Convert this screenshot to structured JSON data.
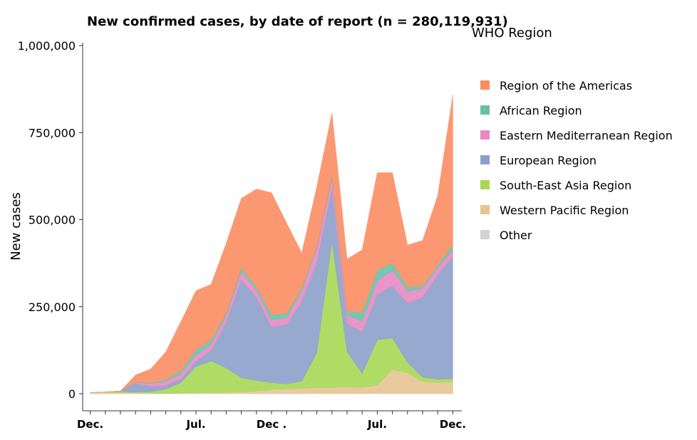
{
  "chart_data": {
    "type": "area",
    "stacked": true,
    "title": "New confirmed cases, by date of report (n = 280,119,931)",
    "xlabel": "",
    "ylabel": "New cases",
    "ylim": [
      0,
      1000000
    ],
    "yticks": [
      0,
      250000,
      500000,
      750000,
      1000000
    ],
    "ytick_labels": [
      "0",
      "250,000",
      "500,000",
      "750,000",
      "1,000,000"
    ],
    "xtick_labels": [
      "Dec.",
      "Jul.",
      "Dec .",
      "Jul.",
      "Dec."
    ],
    "xtick_positions_month_index": [
      0,
      7,
      12,
      19,
      24
    ],
    "x_month_range": [
      -0.5,
      24.5
    ],
    "legend": {
      "title": "WHO Region",
      "position": "right",
      "entries": [
        {
          "name": "Region of the Americas",
          "color": "#fc8d62"
        },
        {
          "name": "African Region",
          "color": "#66c2a5"
        },
        {
          "name": "Eastern Mediterranean Region",
          "color": "#e78ac3"
        },
        {
          "name": "European Region",
          "color": "#8da0cb"
        },
        {
          "name": "South-East Asia Region",
          "color": "#a6d854"
        },
        {
          "name": "Western Pacific Region",
          "color": "#e5c494"
        },
        {
          "name": "Other",
          "color": "#d3d3d3"
        }
      ]
    },
    "stack_order_bottom_to_top": [
      "Western Pacific Region",
      "South-East Asia Region",
      "European Region",
      "Eastern Mediterranean Region",
      "African Region",
      "Region of the Americas"
    ],
    "x_month_index": [
      0,
      1,
      2,
      3,
      4,
      5,
      6,
      7,
      8,
      9,
      10,
      11,
      12,
      13,
      14,
      15,
      16,
      17,
      18,
      19,
      20,
      21,
      22,
      23,
      24
    ],
    "series": [
      {
        "name": "Western Pacific Region",
        "values": [
          3000,
          5000,
          2000,
          2000,
          1000,
          1000,
          2000,
          3000,
          4000,
          4000,
          6000,
          8000,
          12000,
          14000,
          16000,
          18000,
          18000,
          20000,
          18000,
          25000,
          70000,
          60000,
          35000,
          32000,
          35000
        ]
      },
      {
        "name": "South-East Asia Region",
        "values": [
          0,
          0,
          5000,
          3000,
          5000,
          12000,
          30000,
          75000,
          90000,
          70000,
          40000,
          30000,
          20000,
          14000,
          20000,
          100000,
          420000,
          100000,
          40000,
          130000,
          90000,
          30000,
          12000,
          10000,
          8000
        ]
      },
      {
        "name": "European Region",
        "values": [
          0,
          0,
          1000,
          25000,
          15000,
          10000,
          10000,
          15000,
          30000,
          130000,
          280000,
          240000,
          160000,
          170000,
          230000,
          260000,
          150000,
          80000,
          120000,
          130000,
          150000,
          170000,
          230000,
          300000,
          350000
        ]
      },
      {
        "name": "Eastern Mediterranean Region",
        "values": [
          0,
          0,
          0,
          3000,
          8000,
          12000,
          15000,
          18000,
          18000,
          20000,
          25000,
          20000,
          20000,
          20000,
          30000,
          40000,
          30000,
          25000,
          30000,
          40000,
          45000,
          35000,
          25000,
          20000,
          20000
        ]
      },
      {
        "name": "African Region",
        "values": [
          0,
          0,
          0,
          1000,
          2000,
          5000,
          10000,
          15000,
          12000,
          8000,
          10000,
          10000,
          15000,
          12000,
          8000,
          7000,
          8000,
          12000,
          25000,
          30000,
          20000,
          12000,
          8000,
          7000,
          15000
        ]
      },
      {
        "name": "Region of the Americas",
        "values": [
          0,
          0,
          0,
          20000,
          40000,
          80000,
          140000,
          170000,
          160000,
          200000,
          200000,
          280000,
          350000,
          260000,
          100000,
          170000,
          180000,
          150000,
          180000,
          280000,
          260000,
          120000,
          130000,
          200000,
          430000
        ]
      },
      {
        "name": "Other",
        "values": [
          0,
          0,
          0,
          0,
          0,
          0,
          0,
          0,
          0,
          0,
          0,
          0,
          0,
          0,
          0,
          0,
          0,
          0,
          0,
          0,
          0,
          0,
          0,
          0,
          0
        ]
      }
    ]
  }
}
